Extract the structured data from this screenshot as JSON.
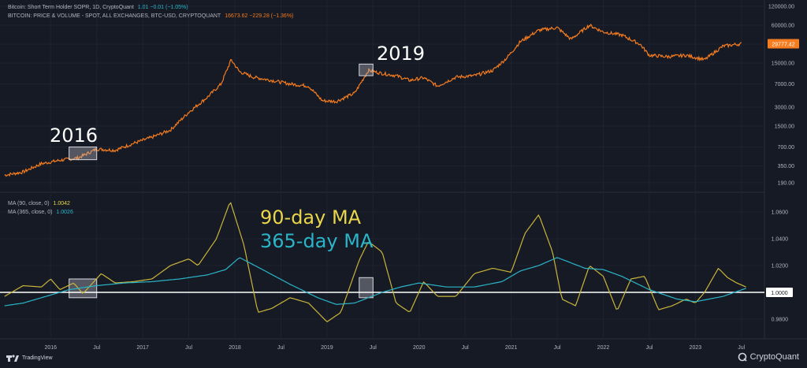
{
  "header": {
    "line1_label": "Bitcoin: Short Term Holder SOPR, 1D, CryptoQuant",
    "line1_value": "1.01  −0.01 (−1.05%)",
    "line2_label": "BITCOIN: PRICE & VOLUME - SPOT, ALL EXCHANGES, BTC-USD, CRYPTOQUANT",
    "line2_value": "16673.62  −229.28 (−1.36%)"
  },
  "legend": {
    "ma90_label": "MA (90, close, 0)",
    "ma90_value": "1.0042",
    "ma365_label": "MA (365, close, 0)",
    "ma365_value": "1.0026"
  },
  "annotations": {
    "y2016": "2016",
    "y2019": "2019",
    "ma90": "90-day MA",
    "ma365": "365-day MA"
  },
  "colors": {
    "price": "#f57c1f",
    "ma90": "#c9b53a",
    "ma365": "#2ab5c8",
    "baseline": "#ffffff",
    "background": "#161a25",
    "annotation_ma90": "#e9d64a",
    "annotation_ma365": "#2ab5c8"
  },
  "footer": {
    "tradingview": "TradingView",
    "cryptoquant": "CryptoQuant"
  },
  "price_label": "29777.42",
  "baseline_label": "1.0000",
  "chart_data": [
    {
      "type": "line",
      "title": "BITCOIN: PRICE & VOLUME - SPOT, ALL EXCHANGES, BTC-USD, CRYPTOQUANT",
      "scale": "log",
      "ylim": [
        150,
        120000
      ],
      "yticks": [
        "120000.00",
        "60000.00",
        "30000.00",
        "15000.00",
        "7000.00",
        "3000.00",
        "1500.00",
        "700.00",
        "350.00",
        "190.00"
      ],
      "ytick_values": [
        120000,
        60000,
        30000,
        15000,
        7000,
        3000,
        1500,
        700,
        350,
        190
      ],
      "x": [
        2015.5,
        2015.7,
        2015.9,
        2016.1,
        2016.3,
        2016.5,
        2016.7,
        2016.9,
        2017.1,
        2017.3,
        2017.5,
        2017.7,
        2017.85,
        2017.96,
        2018.05,
        2018.2,
        2018.4,
        2018.6,
        2018.8,
        2018.95,
        2019.1,
        2019.3,
        2019.45,
        2019.6,
        2019.75,
        2019.9,
        2020.05,
        2020.2,
        2020.4,
        2020.6,
        2020.8,
        2020.95,
        2021.1,
        2021.3,
        2021.5,
        2021.65,
        2021.85,
        2022.0,
        2022.2,
        2022.4,
        2022.5,
        2022.7,
        2022.9,
        2023.1,
        2023.3,
        2023.5
      ],
      "values": [
        250,
        280,
        380,
        430,
        470,
        650,
        620,
        800,
        1000,
        1300,
        2500,
        4300,
        7000,
        17000,
        11000,
        9000,
        8000,
        7000,
        6500,
        3800,
        3700,
        5000,
        11500,
        10300,
        9500,
        8000,
        8800,
        6500,
        9000,
        9500,
        11500,
        18000,
        33000,
        50000,
        55000,
        36000,
        60000,
        47000,
        42000,
        30000,
        20000,
        19000,
        20000,
        17000,
        28000,
        30500
      ],
      "annotations": [
        "2016",
        "2019"
      ],
      "highlight_boxes": [
        {
          "x0": 2016.2,
          "x1": 2016.5,
          "y0": 440,
          "y1": 700
        },
        {
          "x0": 2019.35,
          "x1": 2019.5,
          "y0": 9500,
          "y1": 14500
        }
      ],
      "last_value_label": "29777.42"
    },
    {
      "type": "line",
      "title": "Bitcoin: Short Term Holder SOPR",
      "ylim": [
        0.97,
        1.07
      ],
      "yticks": [
        "1.0600",
        "1.0400",
        "1.0200",
        "1.0000",
        "0.9800"
      ],
      "ytick_values": [
        1.06,
        1.04,
        1.02,
        1.0,
        0.98
      ],
      "xticks": [
        "2016",
        "Jul",
        "2017",
        "Jul",
        "2018",
        "Jul",
        "2019",
        "Jul",
        "2020",
        "Jul",
        "2021",
        "Jul",
        "2022",
        "Jul",
        "2023",
        "Jul"
      ],
      "xtick_values": [
        2016.0,
        2016.5,
        2017.0,
        2017.5,
        2018.0,
        2018.5,
        2019.0,
        2019.5,
        2020.0,
        2020.5,
        2021.0,
        2021.5,
        2022.0,
        2022.5,
        2023.0,
        2023.5
      ],
      "baseline": 1.0,
      "series": [
        {
          "name": "MA (90, close, 0)",
          "x": [
            2015.5,
            2015.7,
            2015.9,
            2016.0,
            2016.1,
            2016.25,
            2016.35,
            2016.55,
            2016.7,
            2016.9,
            2017.1,
            2017.3,
            2017.5,
            2017.6,
            2017.8,
            2017.95,
            2018.1,
            2018.25,
            2018.4,
            2018.6,
            2018.8,
            2019.0,
            2019.15,
            2019.35,
            2019.45,
            2019.6,
            2019.75,
            2019.9,
            2020.05,
            2020.2,
            2020.4,
            2020.6,
            2020.8,
            2021.0,
            2021.15,
            2021.3,
            2021.45,
            2021.55,
            2021.7,
            2021.85,
            2022.0,
            2022.15,
            2022.3,
            2022.45,
            2022.6,
            2022.75,
            2022.9,
            2023.0,
            2023.1,
            2023.25,
            2023.35,
            2023.45,
            2023.55
          ],
          "values": [
            0.997,
            1.005,
            1.004,
            1.01,
            1.002,
            1.007,
            0.999,
            1.014,
            1.007,
            1.008,
            1.01,
            1.02,
            1.025,
            1.02,
            1.04,
            1.068,
            1.035,
            0.985,
            0.988,
            0.996,
            0.992,
            0.978,
            0.985,
            1.024,
            1.038,
            1.03,
            0.992,
            0.985,
            1.008,
            0.997,
            0.997,
            1.014,
            1.018,
            1.015,
            1.044,
            1.058,
            1.03,
            0.995,
            0.99,
            1.02,
            1.012,
            0.986,
            1.01,
            1.012,
            0.987,
            0.99,
            0.995,
            0.992,
            1.0,
            1.018,
            1.011,
            1.007,
            1.004
          ]
        },
        {
          "name": "MA (365, close, 0)",
          "x": [
            2015.5,
            2015.7,
            2015.9,
            2016.2,
            2016.5,
            2016.8,
            2017.1,
            2017.4,
            2017.7,
            2017.9,
            2018.05,
            2018.3,
            2018.6,
            2018.9,
            2019.1,
            2019.3,
            2019.6,
            2019.8,
            2020.0,
            2020.3,
            2020.6,
            2020.9,
            2021.1,
            2021.3,
            2021.5,
            2021.8,
            2022.0,
            2022.2,
            2022.5,
            2022.8,
            2023.0,
            2023.3,
            2023.55
          ],
          "values": [
            0.99,
            0.992,
            0.996,
            1.002,
            1.005,
            1.007,
            1.008,
            1.01,
            1.013,
            1.017,
            1.026,
            1.017,
            1.006,
            0.996,
            0.991,
            0.992,
            1.0,
            1.004,
            1.007,
            1.004,
            1.004,
            1.008,
            1.016,
            1.02,
            1.026,
            1.018,
            1.017,
            1.012,
            1.002,
            0.995,
            0.993,
            0.997,
            1.003
          ]
        }
      ],
      "annotations": [
        "90-day MA",
        "365-day MA"
      ],
      "highlight_boxes": [
        {
          "x0": 2016.2,
          "x1": 2016.5,
          "y0": 0.996,
          "y1": 1.01
        },
        {
          "x0": 2019.35,
          "x1": 2019.5,
          "y0": 0.996,
          "y1": 1.011
        }
      ],
      "baseline_label": "1.0000"
    }
  ]
}
